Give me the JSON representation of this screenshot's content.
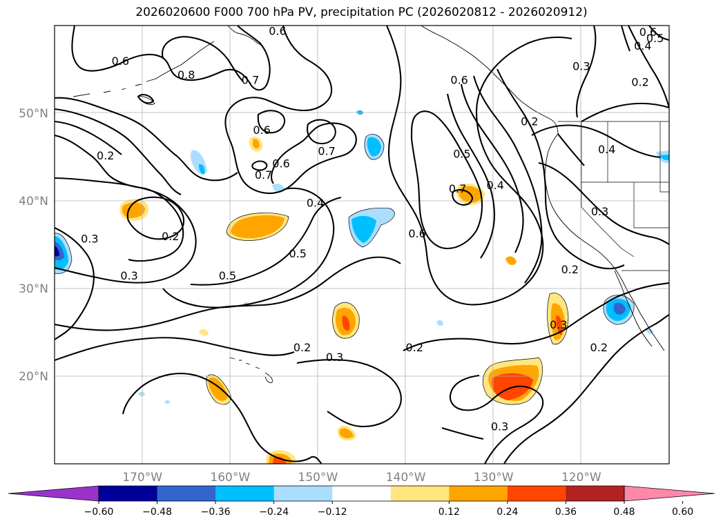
{
  "title": "2026020600 F000 700 hPa PV, precipitation PC (2026020812 - 2026020912)",
  "map": {
    "lon_range": [
      -180,
      -110
    ],
    "lat_range": [
      10,
      60
    ],
    "lat_ticks": [
      {
        "value": 50,
        "label": "50°N"
      },
      {
        "value": 40,
        "label": "40°N"
      },
      {
        "value": 30,
        "label": "30°N"
      },
      {
        "value": 20,
        "label": "20°N"
      }
    ],
    "lon_ticks": [
      {
        "value": -170,
        "label": "170°W"
      },
      {
        "value": -160,
        "label": "160°W"
      },
      {
        "value": -150,
        "label": "150°W"
      },
      {
        "value": -140,
        "label": "140°W"
      },
      {
        "value": -130,
        "label": "130°W"
      },
      {
        "value": -120,
        "label": "120°W"
      }
    ],
    "tick_color": "#808080",
    "grid": true
  },
  "contour_labels": [
    {
      "text": "0.6",
      "lon": -172.5,
      "lat": 56.0
    },
    {
      "text": "0.8",
      "lon": -165.0,
      "lat": 54.4
    },
    {
      "text": "0.7",
      "lon": -157.7,
      "lat": 53.8
    },
    {
      "text": "0.6",
      "lon": -156.4,
      "lat": 48.1
    },
    {
      "text": "0.7",
      "lon": -156.2,
      "lat": 43.0
    },
    {
      "text": "0.6",
      "lon": -154.2,
      "lat": 44.3
    },
    {
      "text": "0.7",
      "lon": -149.0,
      "lat": 45.7
    },
    {
      "text": "0.4",
      "lon": -150.3,
      "lat": 39.8
    },
    {
      "text": "0.5",
      "lon": -152.3,
      "lat": 34.0
    },
    {
      "text": "0.5",
      "lon": -160.3,
      "lat": 31.5
    },
    {
      "text": "0.2",
      "lon": -174.2,
      "lat": 45.2
    },
    {
      "text": "0.3",
      "lon": -176.0,
      "lat": 35.7
    },
    {
      "text": "0.2",
      "lon": -166.8,
      "lat": 36.0
    },
    {
      "text": "0.3",
      "lon": -171.5,
      "lat": 31.5
    },
    {
      "text": "0.2",
      "lon": -151.8,
      "lat": 23.3
    },
    {
      "text": "0.3",
      "lon": -148.1,
      "lat": 22.2
    },
    {
      "text": "0.2",
      "lon": -139.0,
      "lat": 23.3
    },
    {
      "text": "0.6",
      "lon": -133.9,
      "lat": 53.8
    },
    {
      "text": "0.5",
      "lon": -133.6,
      "lat": 45.4
    },
    {
      "text": "0.7",
      "lon": -134.1,
      "lat": 41.4
    },
    {
      "text": "0.4",
      "lon": -129.8,
      "lat": 41.8
    },
    {
      "text": "0.6",
      "lon": -138.7,
      "lat": 36.3
    },
    {
      "text": "0.2",
      "lon": -125.9,
      "lat": 49.1
    },
    {
      "text": "0.4",
      "lon": -117.1,
      "lat": 45.9
    },
    {
      "text": "0.3",
      "lon": -117.9,
      "lat": 38.8
    },
    {
      "text": "0.2",
      "lon": -121.3,
      "lat": 32.2
    },
    {
      "text": "0.3",
      "lon": -122.6,
      "lat": 25.9
    },
    {
      "text": "0.2",
      "lon": -118.0,
      "lat": 23.3
    },
    {
      "text": "0.3",
      "lon": -129.3,
      "lat": 14.3
    },
    {
      "text": "0.3",
      "lon": -120.0,
      "lat": 55.4
    },
    {
      "text": "0.2",
      "lon": -113.3,
      "lat": 53.6
    },
    {
      "text": "0.4",
      "lon": -113.0,
      "lat": 57.7
    },
    {
      "text": "0.5",
      "lon": -111.6,
      "lat": 58.6
    },
    {
      "text": "0.6",
      "lon": -112.4,
      "lat": 59.3
    },
    {
      "text": "0.6",
      "lon": -154.6,
      "lat": 59.4
    }
  ],
  "colorbar": {
    "colors": [
      "#9933cc",
      "#000099",
      "#3366cc",
      "#00bfff",
      "#aadeff",
      "#ffffff",
      "#ffe680",
      "#ffa500",
      "#ff4500",
      "#b22222",
      "#ff88aa"
    ],
    "tick_labels": [
      "−0.60",
      "−0.48",
      "−0.36",
      "−0.24",
      "−0.12",
      "0.12",
      "0.24",
      "0.36",
      "0.48",
      "0.60"
    ],
    "extend": "both"
  }
}
